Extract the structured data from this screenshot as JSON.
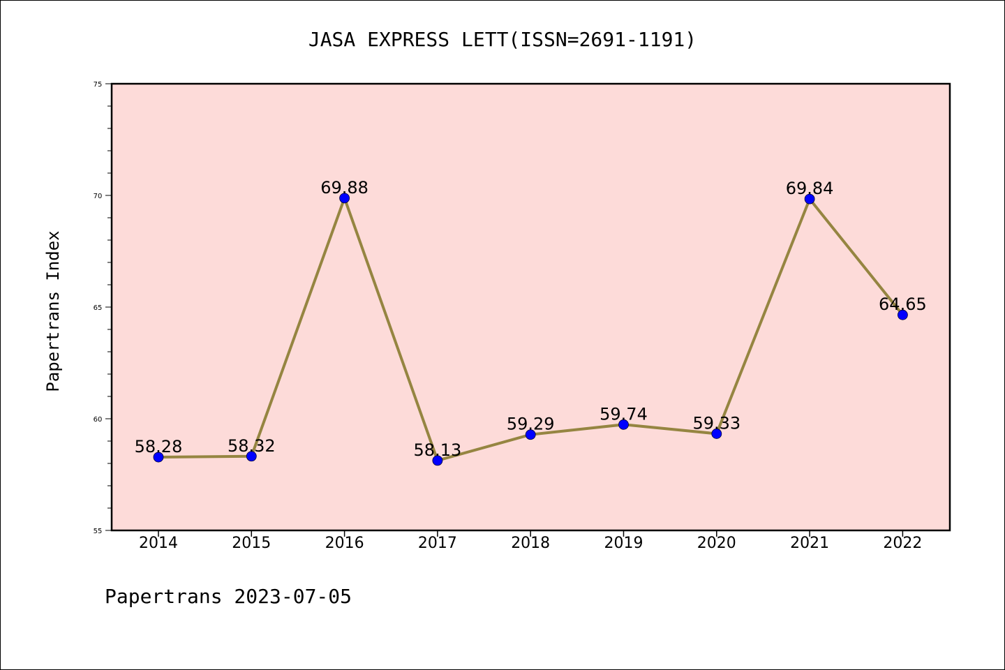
{
  "chart_data": {
    "type": "line",
    "title": "JASA EXPRESS LETT(ISSN=2691-1191)",
    "xlabel": "",
    "ylabel": "Papertrans Index",
    "categories": [
      "2014",
      "2015",
      "2016",
      "2017",
      "2018",
      "2019",
      "2020",
      "2021",
      "2022"
    ],
    "series": [
      {
        "values": [
          58.28,
          58.32,
          69.88,
          58.13,
          59.29,
          59.74,
          59.33,
          69.84,
          64.65
        ],
        "data_labels": [
          "58.28",
          "58.32",
          "69.88",
          "58.13",
          "59.29",
          "59.74",
          "59.33",
          "69.84",
          "64.65"
        ]
      }
    ],
    "ylim": [
      55,
      75
    ],
    "yticks": [
      "55",
      "60",
      "65",
      "70",
      "75"
    ],
    "grid": false,
    "legend": "none",
    "colors": {
      "plot_background": "#fddbd9",
      "line": "#958541",
      "marker": "#0000ff",
      "axis": "#000000"
    }
  },
  "footer": "Papertrans 2023-07-05"
}
